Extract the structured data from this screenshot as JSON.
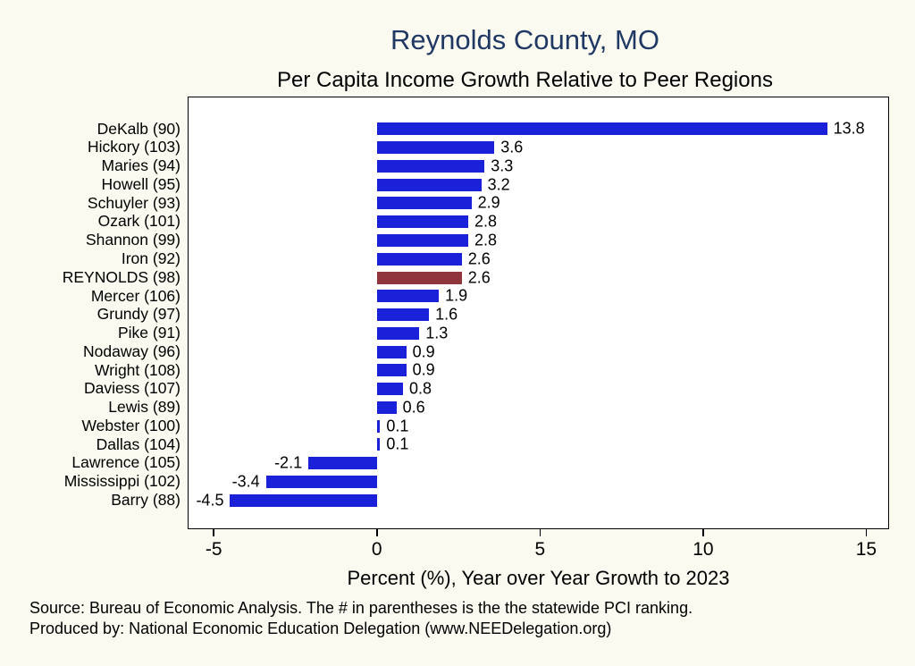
{
  "page": {
    "background": "#fafaf0"
  },
  "chart_data": {
    "type": "bar",
    "orientation": "horizontal",
    "title": "Reynolds County, MO",
    "subtitle": "Per Capita Income Growth Relative to Peer Regions",
    "xlabel": "Percent (%), Year over Year Growth to 2023",
    "categories": [
      "DeKalb (90)",
      "Hickory (103)",
      "Maries (94)",
      "Howell (95)",
      "Schuyler (93)",
      "Ozark (101)",
      "Shannon (99)",
      "Iron (92)",
      "REYNOLDS (98)",
      "Mercer (106)",
      "Grundy (97)",
      "Pike (91)",
      "Nodaway (96)",
      "Wright (108)",
      "Daviess (107)",
      "Lewis (89)",
      "Webster (100)",
      "Dallas (104)",
      "Lawrence (105)",
      "Mississippi (102)",
      "Barry (88)"
    ],
    "values": [
      13.8,
      3.6,
      3.3,
      3.2,
      2.9,
      2.8,
      2.8,
      2.6,
      2.6,
      1.9,
      1.6,
      1.3,
      0.9,
      0.9,
      0.8,
      0.6,
      0.1,
      0.1,
      -2.1,
      -3.4,
      -4.5
    ],
    "highlight_index": 8,
    "bar_color": "#1a21d8",
    "highlight_color": "#90353b",
    "title_color": "#1f3864",
    "xlim": [
      -5.8,
      15.7
    ],
    "xticks": [
      -5,
      0,
      5,
      10,
      15
    ],
    "grid": false,
    "legend": false,
    "value_labels": true
  },
  "footer": {
    "source": "Source: Bureau of Economic Analysis. The # in parentheses is the the statewide PCI ranking.",
    "produced_by": "Produced by: National Economic Education Delegation (www.NEEDelegation.org)"
  }
}
